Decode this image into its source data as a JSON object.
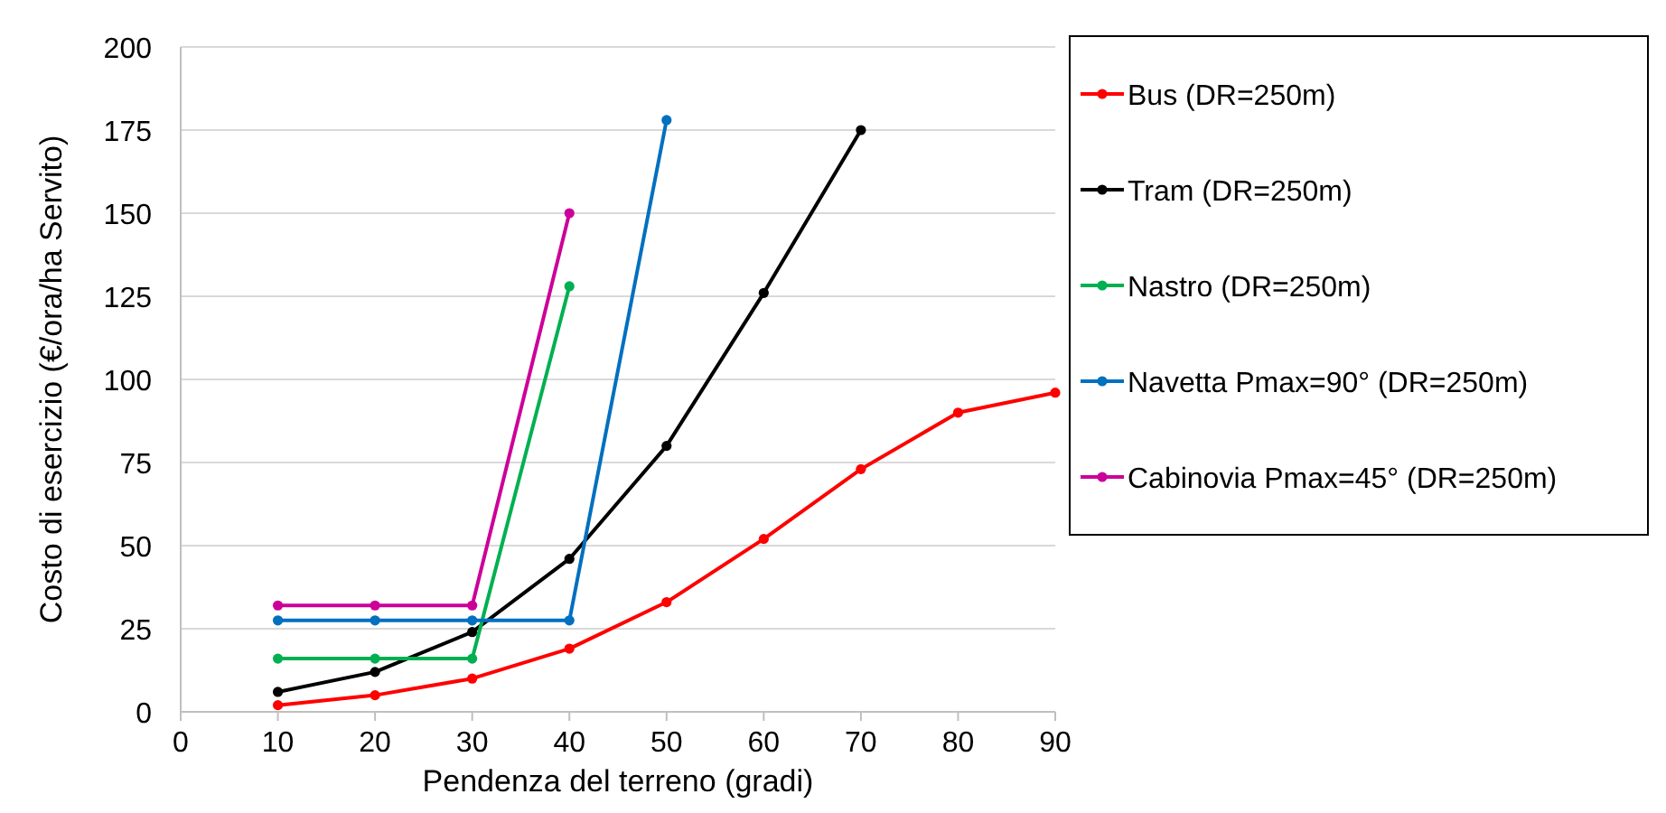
{
  "chart_data": {
    "type": "line",
    "xlabel": "Pendenza del terreno (gradi)",
    "ylabel": "Costo di esercizio (€/ora/ha Servito)",
    "x": [
      10,
      20,
      30,
      40,
      50,
      60,
      70,
      80,
      90
    ],
    "xlim": [
      0,
      90
    ],
    "xticks": [
      0,
      10,
      20,
      30,
      40,
      50,
      60,
      70,
      80,
      90
    ],
    "ylim": [
      0,
      200
    ],
    "yticks": [
      0,
      25,
      50,
      75,
      100,
      125,
      150,
      175,
      200
    ],
    "grid": "y",
    "legend": "right",
    "marker": "circle",
    "line_style": "solid",
    "series": [
      {
        "name": "Bus (DR=250m)",
        "color": "#ff0000",
        "values": [
          2,
          5,
          10,
          19,
          33,
          52,
          73,
          90,
          96
        ]
      },
      {
        "name": "Tram (DR=250m)",
        "color": "#000000",
        "values": [
          6,
          12,
          24,
          46,
          80,
          126,
          175,
          null,
          null
        ]
      },
      {
        "name": "Nastro (DR=250m)",
        "color": "#00b050",
        "values": [
          16,
          16,
          16,
          128,
          null,
          null,
          null,
          null,
          null
        ]
      },
      {
        "name": "Navetta Pmax=90° (DR=250m)",
        "color": "#0070c0",
        "values": [
          27.5,
          27.5,
          27.5,
          27.5,
          178,
          null,
          null,
          null,
          null
        ]
      },
      {
        "name": "Cabinovia Pmax=45° (DR=250m)",
        "color": "#cc0099",
        "values": [
          32,
          32,
          32,
          150,
          null,
          null,
          null,
          null,
          null
        ]
      }
    ]
  }
}
